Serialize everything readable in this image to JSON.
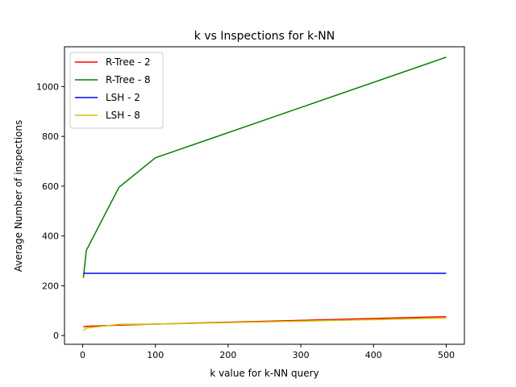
{
  "chart_data": {
    "type": "line",
    "title": "k vs Inspections for k-NN",
    "xlabel": "k value for k-NN query",
    "ylabel": "Average Number of inspections",
    "xlim": [
      -25,
      525
    ],
    "ylim": [
      -35,
      1160
    ],
    "xticks": [
      0,
      100,
      200,
      300,
      400,
      500
    ],
    "yticks": [
      0,
      200,
      400,
      600,
      800,
      1000
    ],
    "grid": false,
    "legend_position": "top-left",
    "x": [
      1,
      5,
      50,
      100,
      500
    ],
    "series": [
      {
        "name": "R-Tree - 2",
        "color": "#ff0000",
        "values": [
          35,
          37,
          42,
          46,
          76
        ]
      },
      {
        "name": "R-Tree - 8",
        "color": "#008000",
        "values": [
          232,
          342,
          596,
          714,
          1118
        ]
      },
      {
        "name": "LSH - 2",
        "color": "#0000ff",
        "values": [
          250,
          250,
          250,
          250,
          250
        ]
      },
      {
        "name": "LSH - 8",
        "color": "#c8c800",
        "values": [
          20,
          30,
          45,
          46,
          70
        ]
      }
    ]
  }
}
